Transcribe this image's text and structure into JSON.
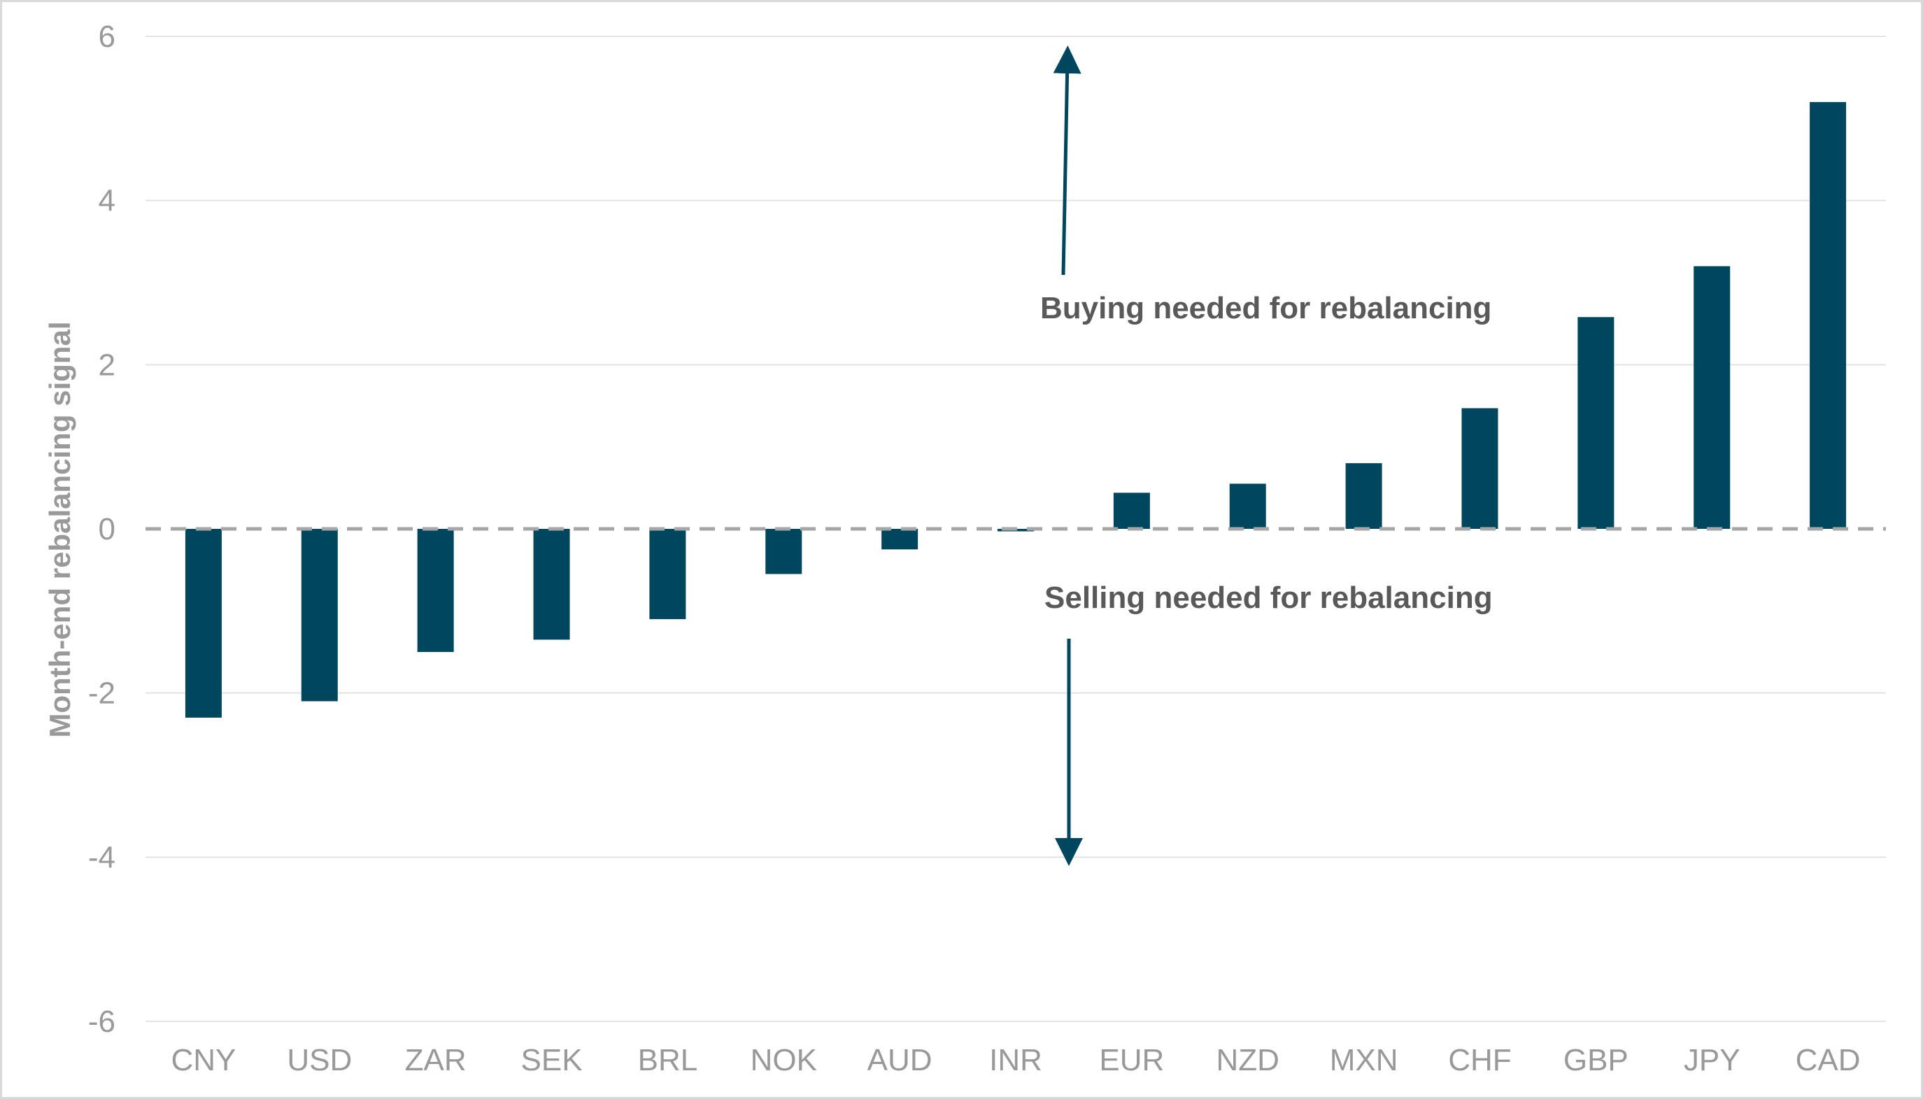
{
  "chart_data": {
    "type": "bar",
    "categories": [
      "CNY",
      "USD",
      "ZAR",
      "SEK",
      "BRL",
      "NOK",
      "AUD",
      "INR",
      "EUR",
      "NZD",
      "MXN",
      "CHF",
      "GBP",
      "JPY",
      "CAD"
    ],
    "values": [
      -2.3,
      -2.1,
      -1.5,
      -1.35,
      -1.1,
      -0.55,
      -0.25,
      -0.03,
      0.44,
      0.55,
      0.8,
      1.47,
      2.58,
      3.2,
      5.2
    ],
    "title": "",
    "xlabel": "",
    "ylabel": "Month-end rebalancing signal",
    "ylim": [
      -6,
      6
    ],
    "yticks": [
      6,
      4,
      2,
      0,
      -2,
      -4,
      -6
    ],
    "grid": true,
    "zero_line": "dashed",
    "colors": {
      "bar": "#00465e",
      "arrow": "#00465e",
      "grid": "#e3e3e3",
      "zero_line": "#a6a6a6",
      "tick_text": "#999999",
      "annotation_text": "#595959"
    },
    "annotations": [
      {
        "id": "buying",
        "text": "Buying needed for rebalancing",
        "arrow": "up"
      },
      {
        "id": "selling",
        "text": "Selling needed for rebalancing",
        "arrow": "down"
      }
    ]
  }
}
